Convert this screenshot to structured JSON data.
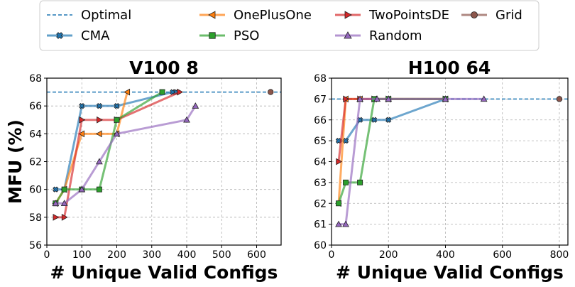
{
  "legend": {
    "entries": [
      {
        "name": "Optimal",
        "color": "#1f77b4",
        "marker": "dashed"
      },
      {
        "name": "OnePlusOne",
        "color": "#ff7f0e",
        "marker": "triangle-left"
      },
      {
        "name": "TwoPointsDE",
        "color": "#d62728",
        "marker": "triangle-right"
      },
      {
        "name": "Grid",
        "color": "#8c564b",
        "marker": "circle"
      },
      {
        "name": "CMA",
        "color": "#1f77b4",
        "marker": "x"
      },
      {
        "name": "PSO",
        "color": "#2ca02c",
        "marker": "square"
      },
      {
        "name": "Random",
        "color": "#9467bd",
        "marker": "triangle-up"
      }
    ]
  },
  "chart_data": [
    {
      "type": "line",
      "title": "V100 8",
      "xlabel": "# Unique Valid Configs",
      "ylabel": "MFU (%)",
      "xlim": [
        0,
        670
      ],
      "ylim": [
        56,
        68
      ],
      "xticks": [
        0,
        100,
        200,
        300,
        400,
        500,
        600
      ],
      "yticks": [
        56,
        58,
        60,
        62,
        64,
        66,
        68
      ],
      "grid": true,
      "optimal": 67,
      "series": [
        {
          "name": "CMA",
          "x": [
            25,
            50,
            100,
            150,
            200,
            360,
            370
          ],
          "y": [
            60,
            60,
            66,
            66,
            66,
            67,
            67
          ]
        },
        {
          "name": "OnePlusOne",
          "x": [
            25,
            50,
            100,
            150,
            200,
            230
          ],
          "y": [
            59,
            60,
            64,
            64,
            64,
            67
          ]
        },
        {
          "name": "TwoPointsDE",
          "x": [
            25,
            50,
            100,
            150,
            200,
            380
          ],
          "y": [
            58,
            58,
            65,
            65,
            65,
            67
          ]
        },
        {
          "name": "PSO",
          "x": [
            25,
            50,
            100,
            150,
            200,
            330
          ],
          "y": [
            59,
            60,
            60,
            60,
            65,
            67
          ]
        },
        {
          "name": "Random",
          "x": [
            25,
            50,
            100,
            150,
            200,
            400,
            425
          ],
          "y": [
            59,
            59,
            60,
            62,
            64,
            65,
            66
          ]
        },
        {
          "name": "Grid",
          "x": [
            640
          ],
          "y": [
            67
          ]
        }
      ]
    },
    {
      "type": "line",
      "title": "H100 64",
      "xlabel": "# Unique Valid Configs",
      "ylabel": "",
      "xlim": [
        0,
        830
      ],
      "ylim": [
        60,
        68
      ],
      "xticks": [
        0,
        200,
        400,
        600,
        800
      ],
      "yticks": [
        60,
        61,
        62,
        63,
        64,
        65,
        66,
        67,
        68
      ],
      "grid": true,
      "optimal": 67,
      "series": [
        {
          "name": "CMA",
          "x": [
            25,
            50,
            100,
            150,
            200,
            400
          ],
          "y": [
            65,
            65,
            66,
            66,
            66,
            67
          ]
        },
        {
          "name": "OnePlusOne",
          "x": [
            25,
            50,
            100,
            150,
            200,
            400
          ],
          "y": [
            62,
            67,
            67,
            67,
            67,
            67
          ]
        },
        {
          "name": "TwoPointsDE",
          "x": [
            25,
            50,
            100,
            150,
            200,
            400
          ],
          "y": [
            64,
            67,
            67,
            67,
            67,
            67
          ]
        },
        {
          "name": "PSO",
          "x": [
            25,
            50,
            100,
            150,
            200,
            400
          ],
          "y": [
            62,
            63,
            63,
            67,
            67,
            67
          ]
        },
        {
          "name": "Random",
          "x": [
            25,
            50,
            100,
            160,
            200,
            400,
            535
          ],
          "y": [
            61,
            61,
            67,
            67,
            67,
            67,
            67
          ]
        },
        {
          "name": "Grid",
          "x": [
            800
          ],
          "y": [
            67
          ]
        }
      ]
    }
  ]
}
